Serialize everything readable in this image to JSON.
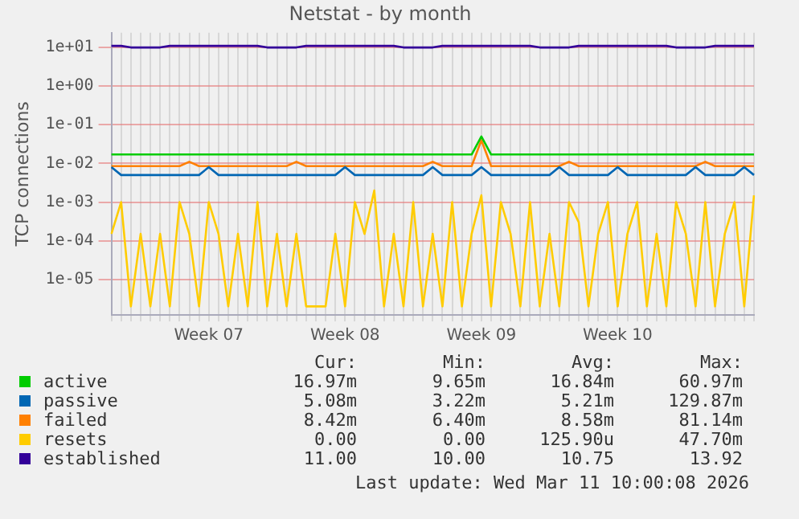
{
  "chart_data": {
    "type": "line",
    "title": "Netstat - by month",
    "ylabel": "TCP connections",
    "log": "y",
    "grid": true,
    "legend": "bottom",
    "marker": "none",
    "line_style": "solid",
    "categories": [
      null,
      null,
      null,
      null,
      null,
      null,
      null,
      null,
      null,
      null,
      "Week 07",
      null,
      null,
      null,
      null,
      null,
      null,
      null,
      null,
      null,
      null,
      null,
      null,
      null,
      "Week 08",
      null,
      null,
      null,
      null,
      null,
      null,
      null,
      null,
      null,
      null,
      null,
      null,
      null,
      "Week 09",
      null,
      null,
      null,
      null,
      null,
      null,
      null,
      null,
      null,
      null,
      null,
      null,
      null,
      "Week 10",
      null,
      null,
      null,
      null,
      null,
      null,
      null,
      null,
      null,
      null,
      null,
      null,
      null,
      null
    ],
    "ylim": [
      1.2e-06,
      24
    ],
    "yticks": [
      {
        "value": 1e-05,
        "label": "1e-05"
      },
      {
        "value": 0.0001,
        "label": "1e-04"
      },
      {
        "value": 0.001,
        "label": "1e-03"
      },
      {
        "value": 0.01,
        "label": "1e-02"
      },
      {
        "value": 0.1,
        "label": "1e-01"
      },
      {
        "value": 1,
        "label": "1e+00"
      },
      {
        "value": 10,
        "label": "1e+01"
      }
    ],
    "series": [
      {
        "name": "active",
        "color": "#00cc00",
        "values": [
          0.017,
          0.017,
          0.017,
          0.017,
          0.017,
          0.017,
          0.017,
          0.017,
          0.017,
          0.017,
          0.017,
          0.017,
          0.017,
          0.017,
          0.017,
          0.017,
          0.017,
          0.017,
          0.017,
          0.017,
          0.017,
          0.017,
          0.017,
          0.017,
          0.017,
          0.017,
          0.017,
          0.017,
          0.017,
          0.017,
          0.017,
          0.017,
          0.017,
          0.017,
          0.017,
          0.017,
          0.017,
          0.017,
          0.05,
          0.017,
          0.017,
          0.017,
          0.017,
          0.017,
          0.017,
          0.017,
          0.017,
          0.017,
          0.017,
          0.017,
          0.017,
          0.017,
          0.017,
          0.017,
          0.017,
          0.017,
          0.017,
          0.017,
          0.017,
          0.017,
          0.017,
          0.017,
          0.017,
          0.017,
          0.017,
          0.017,
          0.017
        ]
      },
      {
        "name": "passive",
        "color": "#0066b3",
        "values": [
          0.008,
          0.005,
          0.005,
          0.005,
          0.005,
          0.005,
          0.005,
          0.005,
          0.005,
          0.005,
          0.008,
          0.005,
          0.005,
          0.005,
          0.005,
          0.005,
          0.005,
          0.005,
          0.005,
          0.005,
          0.005,
          0.005,
          0.005,
          0.005,
          0.008,
          0.005,
          0.005,
          0.005,
          0.005,
          0.005,
          0.005,
          0.005,
          0.005,
          0.008,
          0.005,
          0.005,
          0.005,
          0.005,
          0.008,
          0.005,
          0.005,
          0.005,
          0.005,
          0.005,
          0.005,
          0.005,
          0.008,
          0.005,
          0.005,
          0.005,
          0.005,
          0.005,
          0.008,
          0.005,
          0.005,
          0.005,
          0.005,
          0.005,
          0.005,
          0.005,
          0.008,
          0.005,
          0.005,
          0.005,
          0.005,
          0.008,
          0.005
        ]
      },
      {
        "name": "failed",
        "color": "#ff8000",
        "values": [
          0.0085,
          0.0085,
          0.0085,
          0.0085,
          0.0085,
          0.0085,
          0.0085,
          0.0085,
          0.011,
          0.0085,
          0.0085,
          0.0085,
          0.0085,
          0.0085,
          0.0085,
          0.0085,
          0.0085,
          0.0085,
          0.0085,
          0.011,
          0.0085,
          0.0085,
          0.0085,
          0.0085,
          0.0085,
          0.0085,
          0.0085,
          0.0085,
          0.0085,
          0.0085,
          0.0085,
          0.0085,
          0.0085,
          0.011,
          0.0085,
          0.0085,
          0.0085,
          0.0085,
          0.04,
          0.0085,
          0.0085,
          0.0085,
          0.0085,
          0.0085,
          0.0085,
          0.0085,
          0.0085,
          0.011,
          0.0085,
          0.0085,
          0.0085,
          0.0085,
          0.0085,
          0.0085,
          0.0085,
          0.0085,
          0.0085,
          0.0085,
          0.0085,
          0.0085,
          0.0085,
          0.011,
          0.0085,
          0.0085,
          0.0085,
          0.0085,
          0.0085
        ]
      },
      {
        "name": "resets",
        "color": "#ffcc00",
        "values": [
          0.00015,
          0.001,
          2e-06,
          0.00015,
          2e-06,
          0.00015,
          2e-06,
          0.001,
          0.00015,
          2e-06,
          0.001,
          0.00015,
          2e-06,
          0.00015,
          2e-06,
          0.001,
          2e-06,
          0.00015,
          2e-06,
          0.00015,
          2e-06,
          2e-06,
          2e-06,
          0.00015,
          2e-06,
          0.001,
          0.00015,
          0.002,
          2e-06,
          0.00015,
          2e-06,
          0.001,
          2e-06,
          0.00015,
          2e-06,
          0.001,
          2e-06,
          0.00015,
          0.0015,
          2e-06,
          0.001,
          0.00015,
          2e-06,
          0.001,
          2e-06,
          0.00015,
          2e-06,
          0.001,
          0.0003,
          2e-06,
          0.00015,
          0.001,
          2e-06,
          0.00015,
          0.001,
          2e-06,
          0.00015,
          2e-06,
          0.001,
          0.00015,
          2e-06,
          0.001,
          2e-06,
          0.00015,
          0.001,
          2e-06,
          0.0015
        ]
      },
      {
        "name": "established",
        "color": "#330099",
        "values": [
          11,
          11,
          10,
          10,
          10,
          10,
          11,
          11,
          11,
          11,
          11,
          11,
          11,
          11,
          11,
          11,
          10,
          10,
          10,
          10,
          11,
          11,
          11,
          11,
          11,
          11,
          11,
          11,
          11,
          11,
          10,
          10,
          10,
          10,
          11,
          11,
          11,
          11,
          11,
          11,
          11,
          11,
          11,
          11,
          10,
          10,
          10,
          10,
          11,
          11,
          11,
          11,
          11,
          11,
          11,
          11,
          11,
          11,
          10,
          10,
          10,
          10,
          11,
          11,
          11,
          11,
          11
        ]
      }
    ],
    "annotations": [
      "Cur:",
      "Min:",
      "Avg:",
      "Max:",
      "16.97m",
      "9.65m",
      "16.84m",
      "60.97m",
      "5.08m",
      "3.22m",
      "5.21m",
      "129.87m",
      "8.42m",
      "6.40m",
      "8.58m",
      "81.14m",
      "0.00",
      "0.00",
      "125.90u",
      "47.70m",
      "11.00",
      "10.00",
      "10.75",
      "13.92",
      "Last update: Wed Mar 11 10:00:08 2026"
    ]
  }
}
